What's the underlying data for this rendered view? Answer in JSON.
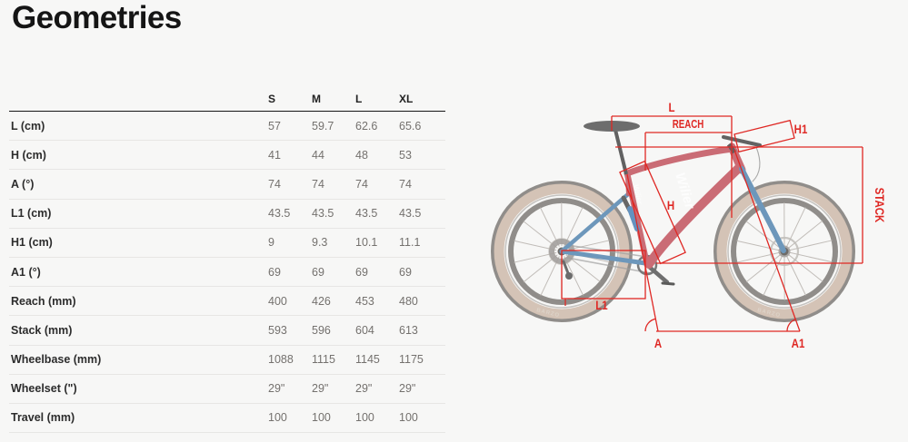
{
  "page": {
    "title": "Geometries"
  },
  "table": {
    "size_headers": [
      "S",
      "M",
      "L",
      "XL"
    ],
    "rows": [
      {
        "label": "L (cm)",
        "values": [
          "57",
          "59.7",
          "62.6",
          "65.6"
        ]
      },
      {
        "label": "H (cm)",
        "values": [
          "41",
          "44",
          "48",
          "53"
        ]
      },
      {
        "label": "A (°)",
        "values": [
          "74",
          "74",
          "74",
          "74"
        ]
      },
      {
        "label": "L1 (cm)",
        "values": [
          "43.5",
          "43.5",
          "43.5",
          "43.5"
        ]
      },
      {
        "label": "H1 (cm)",
        "values": [
          "9",
          "9.3",
          "10.1",
          "11.1"
        ]
      },
      {
        "label": "A1 (°)",
        "values": [
          "69",
          "69",
          "69",
          "69"
        ]
      },
      {
        "label": "Reach (mm)",
        "values": [
          "400",
          "426",
          "453",
          "480"
        ]
      },
      {
        "label": "Stack (mm)",
        "values": [
          "593",
          "596",
          "604",
          "613"
        ]
      },
      {
        "label": "Wheelbase (mm)",
        "values": [
          "1088",
          "1115",
          "1145",
          "1175"
        ]
      },
      {
        "label": "Wheelset (\")",
        "values": [
          "29\"",
          "29\"",
          "29\"",
          "29\""
        ]
      },
      {
        "label": "Travel (mm)",
        "values": [
          "100",
          "100",
          "100",
          "100"
        ]
      }
    ]
  },
  "diagram": {
    "annotation_color": "#df2824",
    "frame_color": "#c04a55",
    "fork_color": "#4b80ad",
    "tire_color": "#c9b3a2",
    "labels": {
      "l": "L",
      "reach": "REACH",
      "h1": "H1",
      "stack": "STACK",
      "h": "H",
      "l1": "L1",
      "a": "A",
      "a1": "A1"
    },
    "frame_logo": "Wilier",
    "frame_logo_small": "Wilier",
    "tire_label": "BARZO"
  }
}
